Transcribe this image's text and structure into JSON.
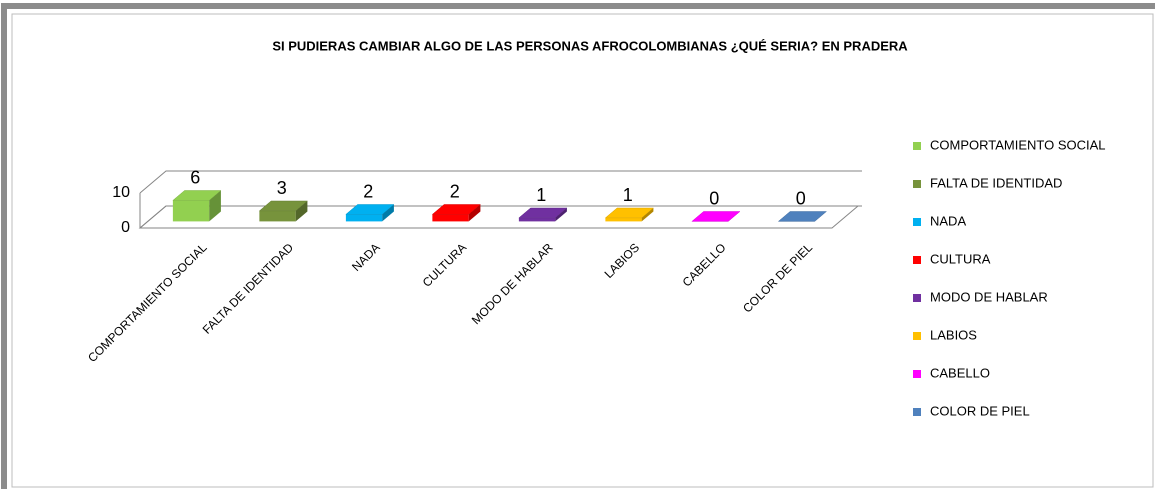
{
  "chart_data": {
    "type": "bar3d",
    "title": "SI PUDIERAS CAMBIAR ALGO DE LAS PERSONAS AFROCOLOMBIANAS ¿QUÉ SERIA? EN PRADERA",
    "categories": [
      "COMPORTAMIENTO SOCIAL",
      "FALTA DE IDENTIDAD",
      "NADA",
      "CULTURA",
      "MODO DE HABLAR",
      "LABIOS",
      "CABELLO",
      "COLOR DE PIEL"
    ],
    "values": [
      6,
      3,
      2,
      2,
      1,
      1,
      0,
      0
    ],
    "colors": [
      "#92d050",
      "#77933c",
      "#00b0f0",
      "#ff0000",
      "#7030a0",
      "#ffc000",
      "#ff00ff",
      "#4f81bd"
    ],
    "ylim": [
      0,
      10
    ],
    "yticks": [
      0,
      10
    ],
    "grid": true,
    "legend": "right"
  }
}
